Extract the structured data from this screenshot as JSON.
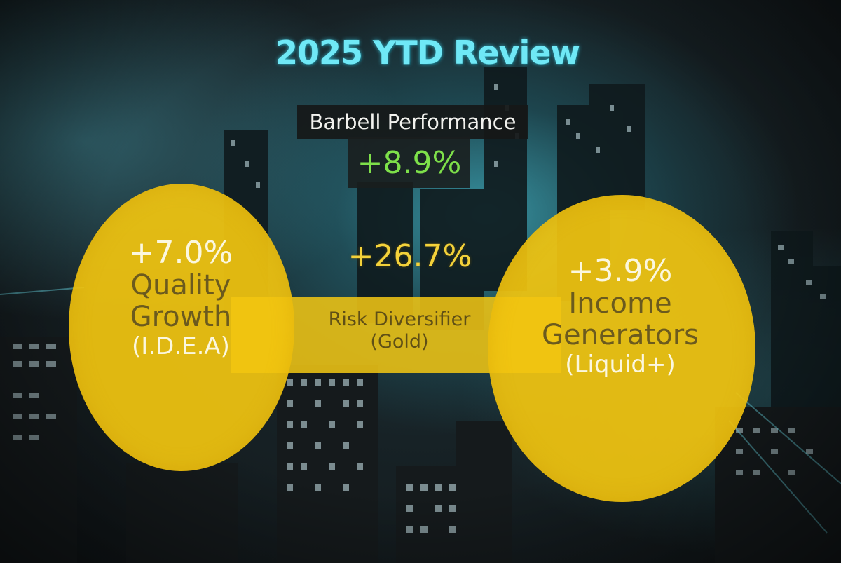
{
  "slide": {
    "title": "2025 YTD Review",
    "headline_label": "Barbell Performance",
    "headline_value": "+8.9%"
  },
  "left_plate": {
    "value": "+7.0%",
    "label_line1": "Quality",
    "label_line2": "Growth",
    "sublabel": "(I.D.E.A)"
  },
  "center_bar": {
    "value": "+26.7%",
    "label": "Risk Diversifier",
    "sublabel": "(Gold)"
  },
  "right_plate": {
    "value": "+3.9%",
    "label_line1": "Income",
    "label_line2": "Generators",
    "sublabel": "(Liquid+)"
  },
  "colors": {
    "title": "#6fe8f6",
    "headline_value": "#7ee04a",
    "plate": "#f2c610",
    "background_glow": "#4cdcf0"
  }
}
